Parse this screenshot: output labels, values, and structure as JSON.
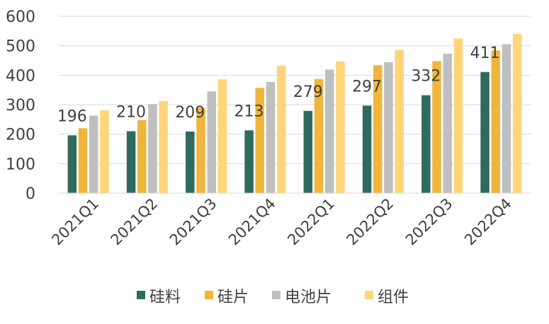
{
  "colors": {
    "series": [
      "#2e6b5e",
      "#f0b63c",
      "#bfbfbf",
      "#ffd57a"
    ],
    "grid": "#d9d9d9",
    "text": "#404040"
  },
  "chart_data": {
    "type": "bar",
    "categories": [
      "2021Q1",
      "2021Q2",
      "2021Q3",
      "2021Q4",
      "2022Q1",
      "2022Q2",
      "2022Q3",
      "2022Q4"
    ],
    "series": [
      {
        "name": "硅料",
        "values": [
          196,
          210,
          209,
          213,
          279,
          297,
          332,
          411
        ],
        "labels": [
          "196",
          "210",
          "209",
          "213",
          "279",
          "297",
          "332",
          "411"
        ]
      },
      {
        "name": "硅片",
        "values": [
          220,
          248,
          290,
          357,
          387,
          434,
          448,
          484
        ]
      },
      {
        "name": "电池片",
        "values": [
          263,
          302,
          345,
          377,
          419,
          444,
          473,
          505
        ]
      },
      {
        "name": "组件",
        "values": [
          281,
          312,
          386,
          432,
          447,
          486,
          525,
          540
        ]
      }
    ],
    "ylim": [
      0,
      600
    ],
    "yticks": [
      0,
      100,
      200,
      300,
      400,
      500,
      600
    ],
    "grid": true,
    "legend": "bottom"
  }
}
